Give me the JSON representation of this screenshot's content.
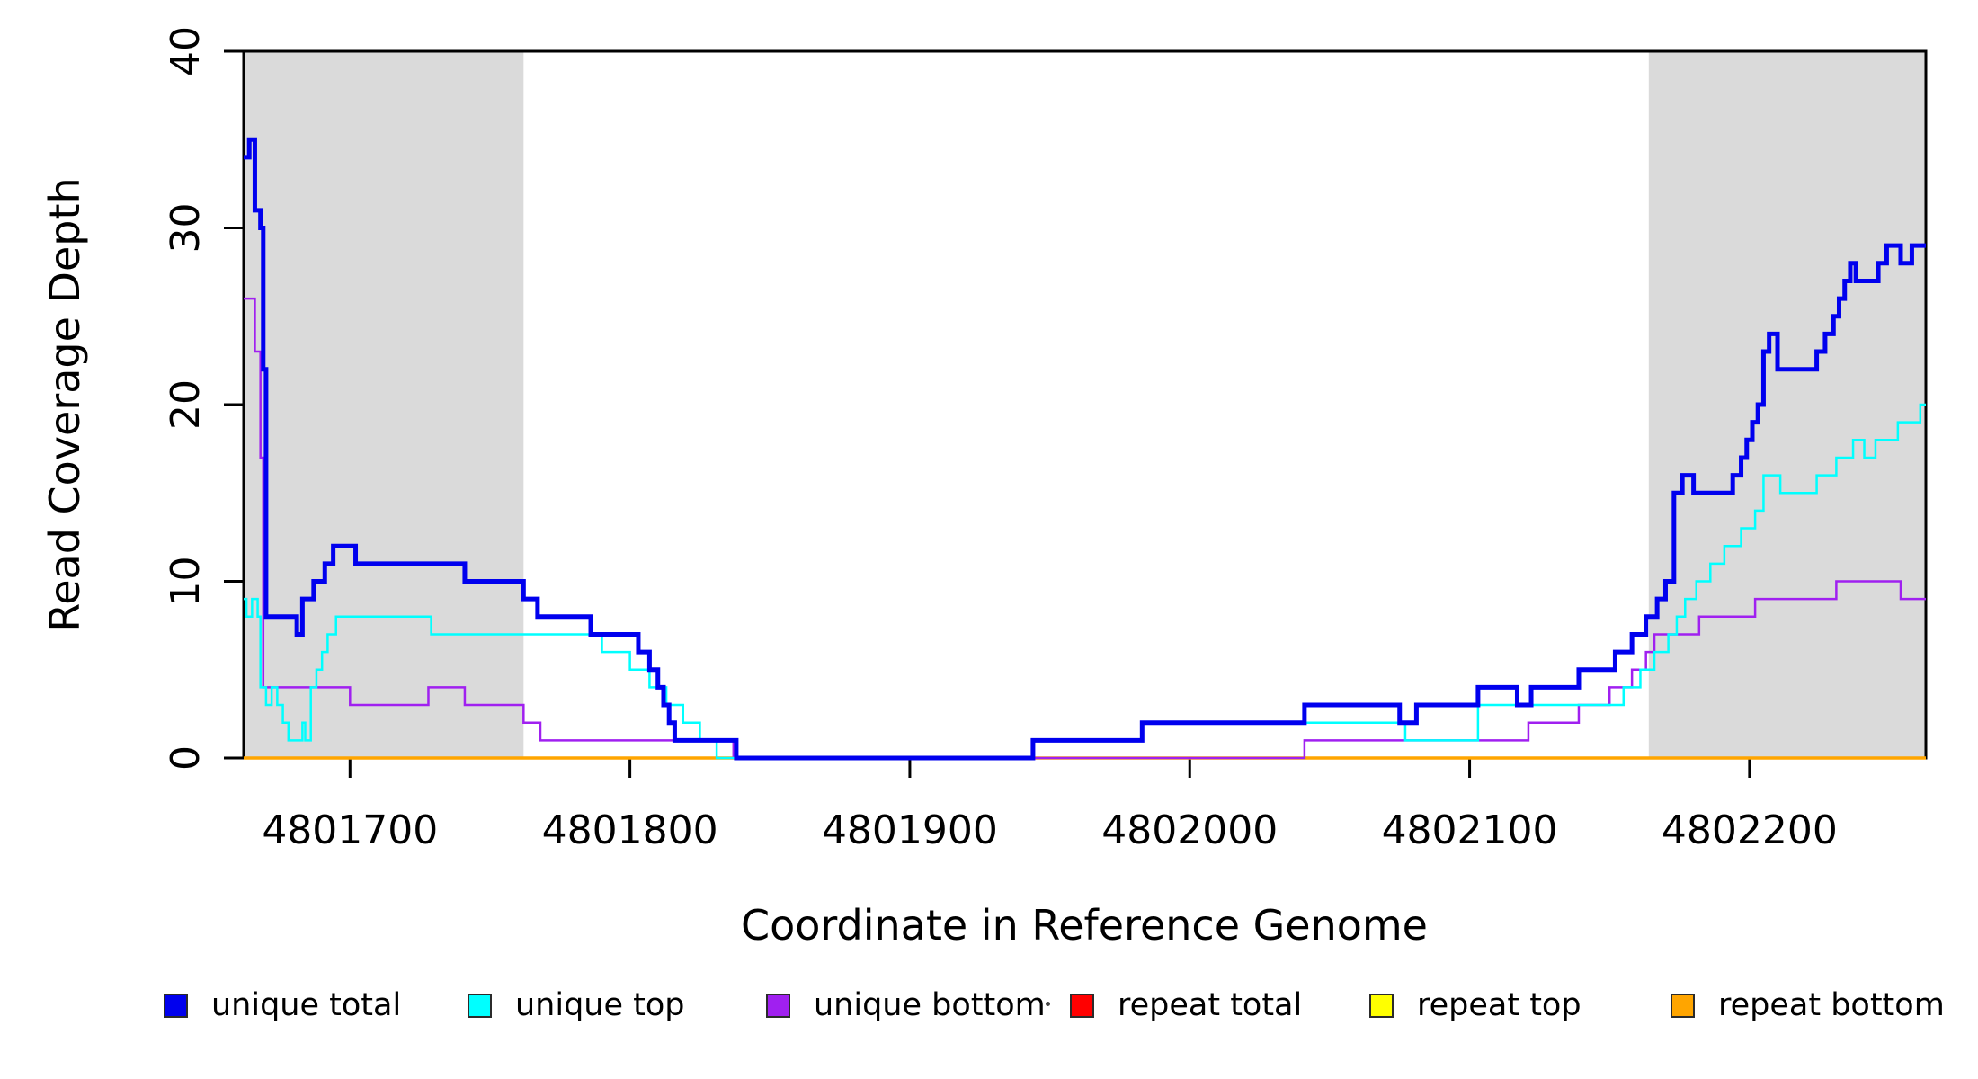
{
  "chart_data": {
    "type": "line",
    "subtype": "step-after",
    "title": "",
    "xlabel": "Coordinate in Reference Genome",
    "ylabel": "Read Coverage Depth",
    "xlim": [
      4801662,
      4802263
    ],
    "ylim": [
      0,
      40
    ],
    "x_ticks": [
      4801700,
      4801800,
      4801900,
      4802000,
      4802100,
      4802200
    ],
    "x_tick_labels": [
      "4801700",
      "4801800",
      "4801900",
      "4802000",
      "4802100",
      "4802200"
    ],
    "y_ticks": [
      0,
      10,
      20,
      30,
      40
    ],
    "y_tick_labels": [
      "0",
      "10",
      "20",
      "30",
      "40"
    ],
    "grid": false,
    "legend_position": "bottom",
    "background_color": "#ffffff",
    "shaded_region_color": "#dadada",
    "shaded_regions": [
      {
        "x0": 4801662,
        "x1": 4801762
      },
      {
        "x0": 4802164,
        "x1": 4802263
      }
    ],
    "series": [
      {
        "name": "repeat total",
        "color": "#ff0000",
        "width": 2.5,
        "points": [
          [
            4801662,
            0
          ],
          [
            4802263,
            0
          ]
        ]
      },
      {
        "name": "repeat top",
        "color": "#ffff00",
        "width": 2.5,
        "points": [
          [
            4801662,
            0
          ],
          [
            4802263,
            0
          ]
        ]
      },
      {
        "name": "repeat bottom",
        "color": "#ffa500",
        "width": 3.5,
        "points": [
          [
            4801662,
            0
          ],
          [
            4802263,
            0
          ]
        ]
      },
      {
        "name": "unique bottom",
        "color": "#a020f0",
        "width": 2.5,
        "points": [
          [
            4801662,
            26
          ],
          [
            4801666,
            23
          ],
          [
            4801668,
            17
          ],
          [
            4801669,
            4
          ],
          [
            4801700,
            3
          ],
          [
            4801728,
            4
          ],
          [
            4801741,
            3
          ],
          [
            4801762,
            2
          ],
          [
            4801768,
            1
          ],
          [
            4801837,
            0
          ],
          [
            4802041,
            1
          ],
          [
            4802121,
            2
          ],
          [
            4802139,
            3
          ],
          [
            4802150,
            4
          ],
          [
            4802158,
            5
          ],
          [
            4802163,
            6
          ],
          [
            4802166,
            7
          ],
          [
            4802182,
            8
          ],
          [
            4802202,
            9
          ],
          [
            4802231,
            10
          ],
          [
            4802254,
            9
          ],
          [
            4802263,
            9
          ]
        ]
      },
      {
        "name": "unique top",
        "color": "#00ffff",
        "width": 2.5,
        "points": [
          [
            4801662,
            9
          ],
          [
            4801663,
            8
          ],
          [
            4801665,
            9
          ],
          [
            4801667,
            8
          ],
          [
            4801668,
            4
          ],
          [
            4801670,
            3
          ],
          [
            4801672,
            4
          ],
          [
            4801674,
            3
          ],
          [
            4801676,
            2
          ],
          [
            4801678,
            1
          ],
          [
            4801683,
            2
          ],
          [
            4801684,
            1
          ],
          [
            4801686,
            4
          ],
          [
            4801688,
            5
          ],
          [
            4801690,
            6
          ],
          [
            4801692,
            7
          ],
          [
            4801695,
            8
          ],
          [
            4801729,
            7
          ],
          [
            4801790,
            6
          ],
          [
            4801800,
            5
          ],
          [
            4801807,
            4
          ],
          [
            4801813,
            3
          ],
          [
            4801819,
            2
          ],
          [
            4801825,
            1
          ],
          [
            4801831,
            0
          ],
          [
            4801944,
            1
          ],
          [
            4801983,
            2
          ],
          [
            4802077,
            1
          ],
          [
            4802103,
            3
          ],
          [
            4802155,
            4
          ],
          [
            4802161,
            5
          ],
          [
            4802166,
            6
          ],
          [
            4802171,
            7
          ],
          [
            4802174,
            8
          ],
          [
            4802177,
            9
          ],
          [
            4802181,
            10
          ],
          [
            4802186,
            11
          ],
          [
            4802191,
            12
          ],
          [
            4802197,
            13
          ],
          [
            4802202,
            14
          ],
          [
            4802205,
            16
          ],
          [
            4802211,
            15
          ],
          [
            4802224,
            16
          ],
          [
            4802231,
            17
          ],
          [
            4802237,
            18
          ],
          [
            4802241,
            17
          ],
          [
            4802245,
            18
          ],
          [
            4802253,
            19
          ],
          [
            4802261,
            20
          ],
          [
            4802263,
            20
          ]
        ]
      },
      {
        "name": "unique total",
        "color": "#0000ee",
        "width": 5,
        "points": [
          [
            4801662,
            34
          ],
          [
            4801664,
            35
          ],
          [
            4801666,
            31
          ],
          [
            4801668,
            30
          ],
          [
            4801669,
            22
          ],
          [
            4801670,
            8
          ],
          [
            4801681,
            7
          ],
          [
            4801683,
            9
          ],
          [
            4801687,
            10
          ],
          [
            4801691,
            11
          ],
          [
            4801694,
            12
          ],
          [
            4801702,
            11
          ],
          [
            4801741,
            10
          ],
          [
            4801762,
            9
          ],
          [
            4801767,
            8
          ],
          [
            4801786,
            7
          ],
          [
            4801803,
            6
          ],
          [
            4801807,
            5
          ],
          [
            4801810,
            4
          ],
          [
            4801812,
            3
          ],
          [
            4801814,
            2
          ],
          [
            4801816,
            1
          ],
          [
            4801838,
            0
          ],
          [
            4801944,
            1
          ],
          [
            4801983,
            2
          ],
          [
            4802041,
            3
          ],
          [
            4802075,
            2
          ],
          [
            4802081,
            3
          ],
          [
            4802103,
            4
          ],
          [
            4802117,
            3
          ],
          [
            4802122,
            4
          ],
          [
            4802139,
            5
          ],
          [
            4802152,
            6
          ],
          [
            4802158,
            7
          ],
          [
            4802163,
            8
          ],
          [
            4802167,
            9
          ],
          [
            4802170,
            10
          ],
          [
            4802173,
            15
          ],
          [
            4802176,
            16
          ],
          [
            4802180,
            15
          ],
          [
            4802194,
            16
          ],
          [
            4802197,
            17
          ],
          [
            4802199,
            18
          ],
          [
            4802201,
            19
          ],
          [
            4802203,
            20
          ],
          [
            4802205,
            23
          ],
          [
            4802207,
            24
          ],
          [
            4802210,
            22
          ],
          [
            4802224,
            23
          ],
          [
            4802227,
            24
          ],
          [
            4802230,
            25
          ],
          [
            4802232,
            26
          ],
          [
            4802234,
            27
          ],
          [
            4802236,
            28
          ],
          [
            4802238,
            27
          ],
          [
            4802246,
            28
          ],
          [
            4802249,
            29
          ],
          [
            4802254,
            28
          ],
          [
            4802258,
            29
          ],
          [
            4802263,
            29
          ]
        ]
      }
    ],
    "legend": [
      {
        "label": "unique total",
        "color": "#0000ee"
      },
      {
        "label": "unique top",
        "color": "#00ffff"
      },
      {
        "label": "unique bottom",
        "color": "#a020f0"
      },
      {
        "label": "repeat total",
        "color": "#ff0000"
      },
      {
        "label": "repeat top",
        "color": "#ffff00"
      },
      {
        "label": "repeat bottom",
        "color": "#ffa500"
      }
    ]
  }
}
